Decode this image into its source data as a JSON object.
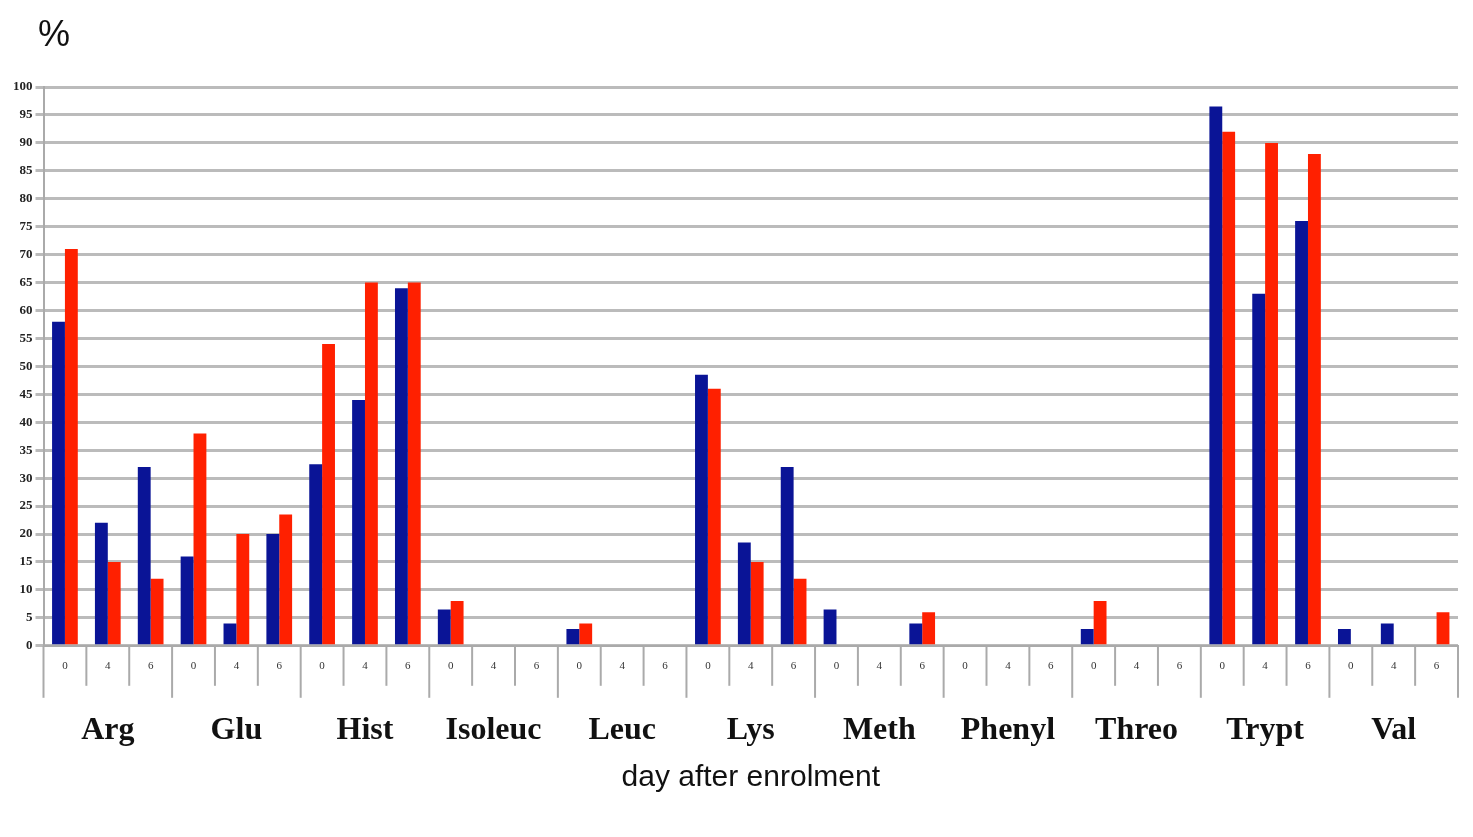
{
  "chart_data": {
    "type": "bar",
    "ylabel": "%",
    "xlabel": "day after enrolment",
    "categories": [
      "0",
      "4",
      "6",
      "0",
      "4",
      "6",
      "0",
      "4",
      "6",
      "0",
      "4",
      "6",
      "0",
      "4",
      "6",
      "0",
      "4",
      "6",
      "0",
      "4",
      "6",
      "0",
      "4",
      "6",
      "0",
      "4",
      "6",
      "0",
      "4",
      "6",
      "0",
      "4",
      "6"
    ],
    "annotations": [
      "Arg",
      "Glu",
      "Hist",
      "Isoleuc",
      "Leuc",
      "Lys",
      "Meth",
      "Phenyl",
      "Threo",
      "Trypt",
      "Val"
    ],
    "series": [
      {
        "color": "#0a1496",
        "values": [
          58,
          22,
          32,
          16,
          4,
          20,
          32.5,
          44,
          64,
          6.5,
          null,
          null,
          3,
          null,
          null,
          48.5,
          18.5,
          32,
          6.5,
          null,
          4,
          null,
          null,
          null,
          3,
          null,
          null,
          96.5,
          63,
          76,
          3,
          4,
          null
        ]
      },
      {
        "color": "#ff2000",
        "values": [
          71,
          15,
          12,
          38,
          20,
          23.5,
          54,
          65,
          65,
          8,
          null,
          null,
          4,
          null,
          null,
          46,
          15,
          12,
          null,
          null,
          6,
          null,
          null,
          null,
          8,
          null,
          null,
          92,
          90,
          88,
          null,
          null,
          6
        ]
      }
    ],
    "ylim": [
      0,
      100
    ],
    "yticks": [
      0,
      5,
      10,
      15,
      20,
      25,
      30,
      35,
      40,
      45,
      50,
      55,
      60,
      65,
      70,
      75,
      80,
      85,
      90,
      95,
      100
    ],
    "grid": "y",
    "legend": false
  }
}
